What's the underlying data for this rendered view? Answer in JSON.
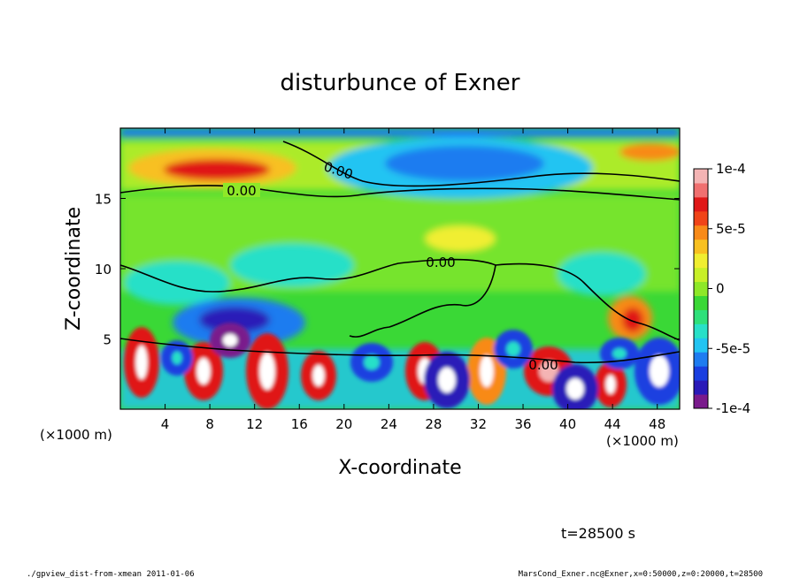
{
  "chart_data": {
    "type": "heatmap",
    "title": "disturbunce of Exner",
    "xlabel": "X-coordinate",
    "ylabel": "Z-coordinate",
    "x_unit_label": "(×1000 m)",
    "z_unit_label": "(×1000 m)",
    "xlim": [
      0,
      50
    ],
    "ylim": [
      0,
      20
    ],
    "x_ticks": [
      4,
      8,
      12,
      16,
      20,
      24,
      28,
      32,
      36,
      40,
      44,
      48
    ],
    "y_ticks": [
      5,
      10,
      15
    ],
    "contour_labels": [
      "0.00",
      "0.00",
      "0.00",
      "0.00"
    ],
    "colorbar": {
      "range": [
        -0.0001,
        0.0001
      ],
      "tick_values": [
        0.0001,
        5e-05,
        0,
        -5e-05,
        -0.0001
      ],
      "tick_labels": [
        "1e-4",
        "5e-5",
        "0",
        "-5e-5",
        "-1e-4"
      ],
      "colors": [
        "#7a1a8c",
        "#2a1ab8",
        "#1a3fe0",
        "#1e7cf0",
        "#22c4f2",
        "#28e0c8",
        "#2ee07a",
        "#3ad836",
        "#8ee828",
        "#c8f028",
        "#f0ee30",
        "#f8c020",
        "#f88a18",
        "#f04418",
        "#e01818",
        "#f07070",
        "#f4b4b4"
      ]
    },
    "time_label": "t=28500 s",
    "footer_left": "./gpview_dist-from-xmean  2011-01-06",
    "footer_right": "MarsCond_Exner.nc@Exner,x=0:50000,z=0:20000,t=28500"
  }
}
